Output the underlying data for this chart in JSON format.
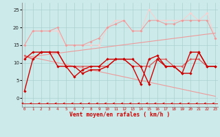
{
  "x": [
    0,
    1,
    2,
    3,
    4,
    5,
    6,
    7,
    8,
    9,
    10,
    11,
    12,
    13,
    14,
    15,
    16,
    17,
    18,
    19,
    20,
    21,
    22,
    23
  ],
  "line_volatile1": [
    2,
    11,
    13,
    13,
    9,
    9,
    6,
    8,
    9,
    9,
    11,
    11,
    11,
    9,
    4,
    11,
    12,
    9,
    9,
    7,
    13,
    13,
    9,
    9
  ],
  "line_volatile2": [
    11,
    13,
    13,
    13,
    13,
    9,
    9,
    7,
    8,
    8,
    9,
    11,
    11,
    11,
    9,
    4,
    11,
    9,
    9,
    7,
    7,
    13,
    9,
    9
  ],
  "line_flat": [
    12,
    11,
    13,
    13,
    13,
    9,
    9,
    9,
    9,
    9,
    9,
    11,
    11,
    9,
    9,
    9,
    11,
    11,
    9,
    9,
    11,
    11,
    9,
    9
  ],
  "line_top_volatile": [
    15,
    19,
    19,
    19,
    19,
    15,
    15,
    15,
    15,
    15,
    20,
    22,
    22,
    19,
    19,
    25,
    22,
    22,
    22,
    22,
    24,
    22,
    24,
    17
  ],
  "line_top_smooth": [
    15,
    19,
    19,
    19,
    20,
    15,
    15,
    15,
    16,
    17,
    20,
    21,
    22,
    19,
    19,
    22,
    22,
    21,
    21,
    22,
    22,
    22,
    22,
    17
  ],
  "line_reg_up": [
    11.5,
    11.8,
    12.1,
    12.4,
    12.7,
    13.0,
    13.3,
    13.6,
    13.9,
    14.2,
    14.5,
    14.8,
    15.1,
    15.4,
    15.7,
    16.0,
    16.3,
    16.6,
    16.9,
    17.2,
    17.5,
    17.8,
    18.1,
    18.4
  ],
  "line_reg_down": [
    12.0,
    11.5,
    11.0,
    10.5,
    10.0,
    9.5,
    9.0,
    8.5,
    8.0,
    7.5,
    7.0,
    6.5,
    6.0,
    5.5,
    5.0,
    4.5,
    4.0,
    3.5,
    3.0,
    2.5,
    2.0,
    1.5,
    1.0,
    0.5
  ],
  "bg_color": "#cceaea",
  "grid_color": "#aacfcf",
  "col_dark": "#cc0000",
  "col_medium": "#dd5555",
  "col_light": "#ee9999",
  "col_lighter": "#ffcccc",
  "ylabel_vals": [
    0,
    5,
    10,
    15,
    20,
    25
  ],
  "ylim": [
    -2.5,
    27
  ],
  "xlim": [
    -0.3,
    23.3
  ],
  "xlabel": "Vent moyen/en rafales ( km/h )"
}
